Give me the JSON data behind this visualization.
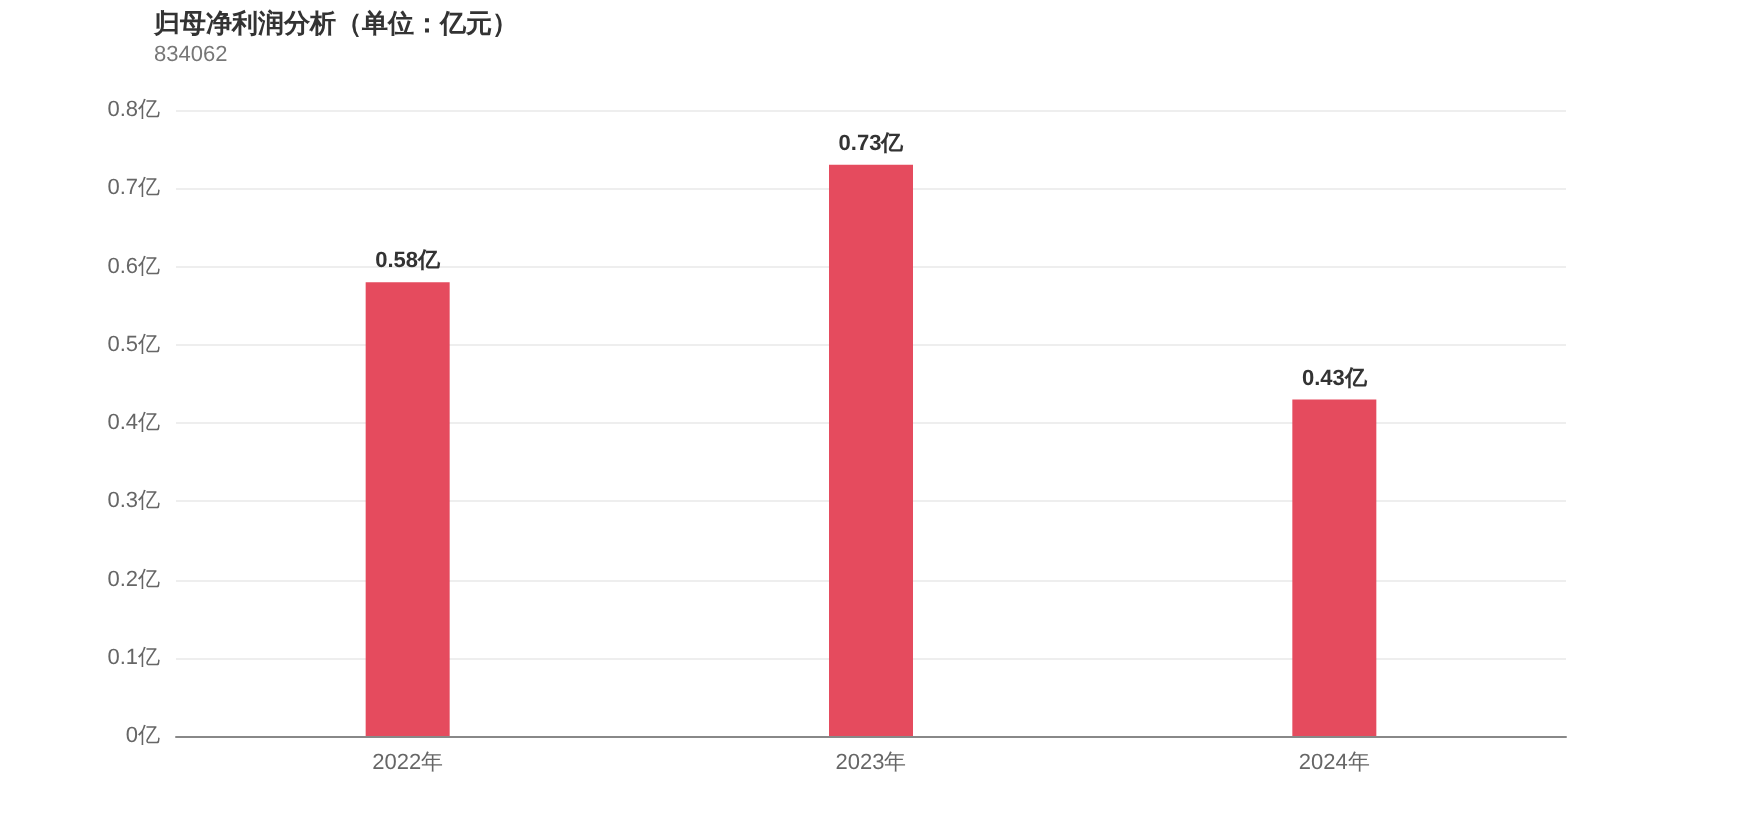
{
  "chart_data": {
    "type": "bar",
    "title": "归母净利润分析（单位：亿元）",
    "subtitle": "834062",
    "categories": [
      "2022年",
      "2023年",
      "2024年"
    ],
    "values": [
      0.58,
      0.73,
      0.43
    ],
    "value_labels": [
      "0.58亿",
      "0.73亿",
      "0.43亿"
    ],
    "color": "#e54b5e",
    "ylim": [
      0,
      0.8
    ],
    "yticks": [
      {
        "value": 0,
        "label": "0亿"
      },
      {
        "value": 0.1,
        "label": "0.1亿"
      },
      {
        "value": 0.2,
        "label": "0.2亿"
      },
      {
        "value": 0.3,
        "label": "0.3亿"
      },
      {
        "value": 0.4,
        "label": "0.4亿"
      },
      {
        "value": 0.5,
        "label": "0.5亿"
      },
      {
        "value": 0.6,
        "label": "0.6亿"
      },
      {
        "value": 0.7,
        "label": "0.7亿"
      },
      {
        "value": 0.8,
        "label": "0.8亿"
      }
    ],
    "grid": "y"
  }
}
